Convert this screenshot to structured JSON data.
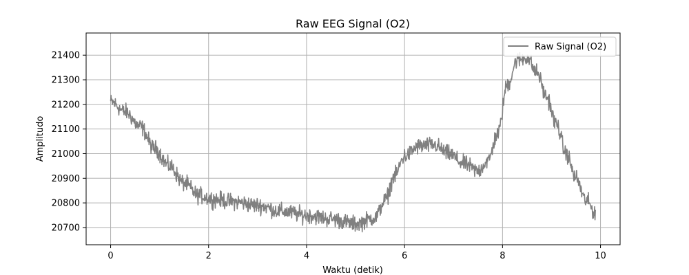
{
  "chart_data": {
    "type": "line",
    "title": "Raw EEG Signal (O2)",
    "xlabel": "Waktu (detik)",
    "ylabel": "Amplitudo",
    "xlim": [
      -0.5,
      10.4
    ],
    "ylim": [
      20630,
      21490
    ],
    "xticks": [
      0,
      2,
      4,
      6,
      8,
      10
    ],
    "yticks": [
      20700,
      20800,
      20900,
      21000,
      21100,
      21200,
      21300,
      21400
    ],
    "grid": true,
    "legend_position": "top-right",
    "series": [
      {
        "name": "Raw Signal (O2)",
        "color": "#808080",
        "trend": {
          "x": [
            0.0,
            0.3,
            0.6,
            0.9,
            1.2,
            1.5,
            1.8,
            2.1,
            2.5,
            3.0,
            3.5,
            4.0,
            4.5,
            5.0,
            5.4,
            5.6,
            5.8,
            6.0,
            6.3,
            6.6,
            6.9,
            7.2,
            7.5,
            7.7,
            7.9,
            8.1,
            8.3,
            8.5,
            8.7,
            8.9,
            9.1,
            9.3,
            9.5,
            9.7,
            9.9
          ],
          "y": [
            21210,
            21170,
            21110,
            21020,
            20950,
            20880,
            20830,
            20815,
            20805,
            20790,
            20765,
            20750,
            20735,
            20715,
            20740,
            20810,
            20910,
            20990,
            21030,
            21035,
            21000,
            20960,
            20930,
            20970,
            21080,
            21280,
            21380,
            21390,
            21330,
            21230,
            21120,
            21000,
            20900,
            20810,
            20760
          ]
        },
        "noise_amplitude": 28,
        "sampling_interval": 0.008
      }
    ]
  }
}
